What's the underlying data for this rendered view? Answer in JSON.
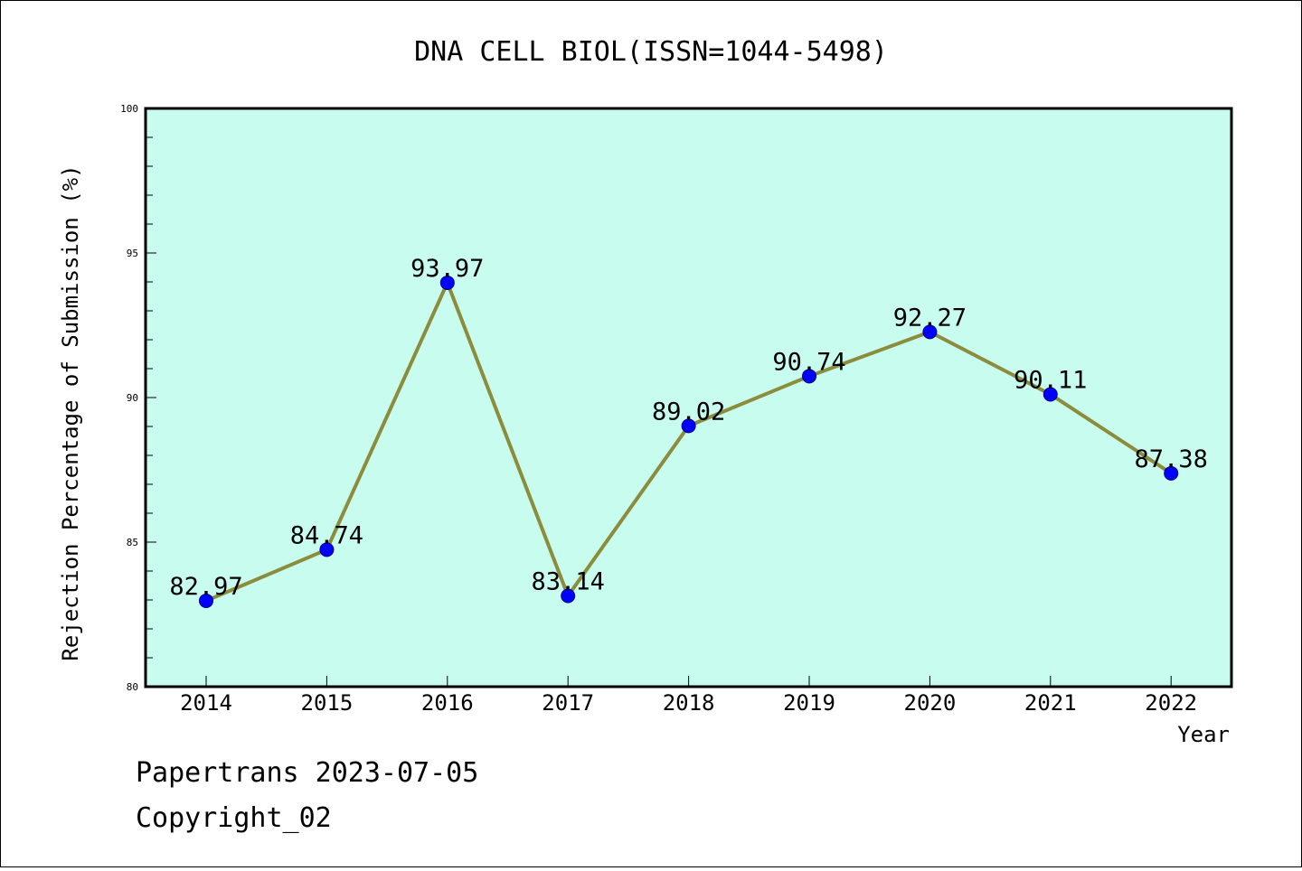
{
  "chart_data": {
    "type": "line",
    "title": "DNA CELL BIOL(ISSN=1044-5498)",
    "xlabel": "Year",
    "ylabel": "Rejection Percentage of Submission (%)",
    "categories": [
      "2014",
      "2015",
      "2016",
      "2017",
      "2018",
      "2019",
      "2020",
      "2021",
      "2022"
    ],
    "series": [
      {
        "values": [
          82.97,
          84.74,
          93.97,
          83.14,
          89.02,
          90.74,
          92.27,
          90.11,
          87.38
        ],
        "labels": [
          "82.97",
          "84.74",
          "93.97",
          "83.14",
          "89.02",
          "90.74",
          "92.27",
          "90.11",
          "87.38"
        ]
      }
    ],
    "ylim": [
      80,
      100
    ],
    "y_ticks": [
      "80",
      "85",
      "90",
      "95",
      "100"
    ],
    "grid": false,
    "colors": {
      "plot_background": "#c8fcef",
      "line": "#8b8c3c",
      "marker": "#0000ff"
    }
  },
  "footer": {
    "line1": "Papertrans 2023-07-05",
    "line2": "Copyright_02"
  }
}
